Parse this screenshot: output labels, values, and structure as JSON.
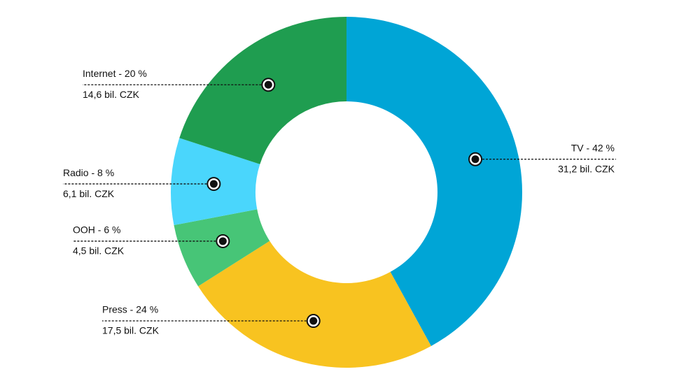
{
  "chart_data": {
    "type": "donut",
    "values": [
      42,
      24,
      6,
      8,
      20
    ],
    "value_labels": [
      "TV - 42 %",
      "Press - 24 %",
      "OOH - 6 %",
      "Radio - 8 %",
      "Internet - 20 %"
    ],
    "amounts": [
      31.2,
      17.5,
      4.5,
      6.1,
      14.6
    ],
    "amount_labels": [
      "31,2 bil. CZK",
      "17,5 bil. CZK",
      "4,5 bil. CZK",
      "6,1 bil. CZK",
      "14,6 bil. CZK"
    ],
    "colors": [
      "#00a5d6",
      "#f8c320",
      "#47c577",
      "#4ad6fc",
      "#1f9d50"
    ]
  }
}
